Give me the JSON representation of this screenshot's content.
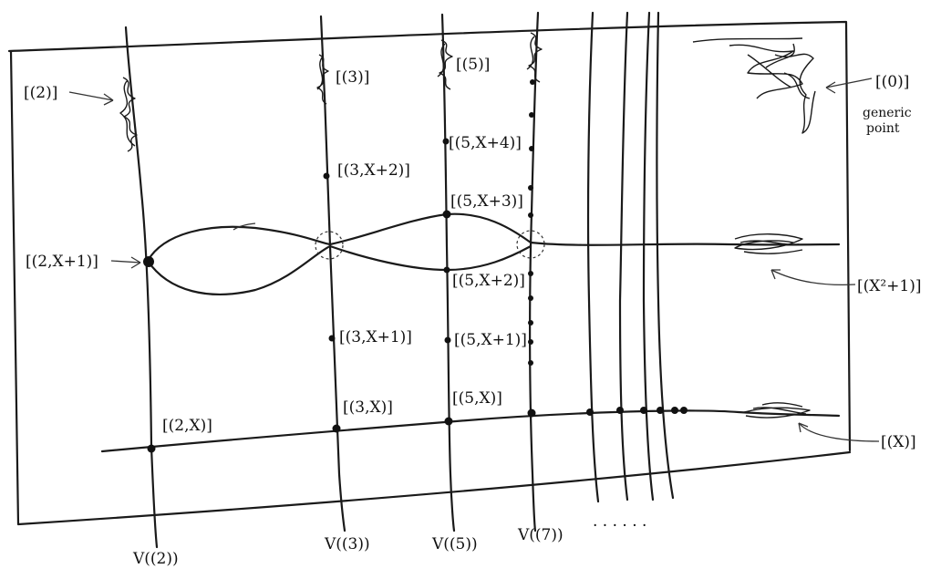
{
  "generic_point": {
    "label": "[(0)]",
    "caption_line1": "generic",
    "caption_line2": "point"
  },
  "closed_points": {
    "p2": "[(2)]",
    "p3": "[(3)]",
    "p5": "[(5)]"
  },
  "fiber_labels": {
    "v2": "V((2))",
    "v3": "V((3))",
    "v5": "V((5))",
    "v7": "V((7))"
  },
  "point_labels": {
    "two_x": "[(2,X)]",
    "two_x1": "[(2,X+1)]",
    "three_x": "[(3,X)]",
    "three_x1": "[(3,X+1)]",
    "three_x2": "[(3,X+2)]",
    "five_x": "[(5,X)]",
    "five_x1": "[(5,X+1)]",
    "five_x2": "[(5,X+2)]",
    "five_x3": "[(5,X+3)]",
    "five_x4": "[(5,X+4)]"
  },
  "curve_labels": {
    "x": "[(X)]",
    "x2_plus_1": "[(X²+1)]"
  },
  "ellipsis": "· · · · · ·"
}
